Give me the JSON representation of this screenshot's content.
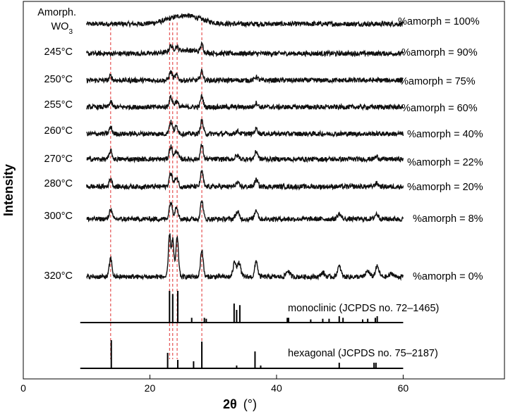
{
  "chart_data": {
    "type": "line",
    "xlabel_main": "2θ",
    "xlabel_unit": "(°)",
    "ylabel": "Intensity",
    "xlim": [
      0,
      76
    ],
    "xticks": [
      0,
      20,
      40,
      60
    ],
    "data_xrange": [
      10,
      60
    ],
    "series": [
      {
        "name": "Amorph. WO3",
        "label_line1": "Amorph.",
        "label_line2_base": "WO",
        "label_line2_sub": "3",
        "amorph_label": "%amorph = 100%",
        "amorph_percent": 100,
        "peaks": [
          {
            "x": 25.5,
            "h": 0.5,
            "w": 3.5
          }
        ]
      },
      {
        "name": "245°C",
        "label": "245°C",
        "amorph_label": "%amorph = 90%",
        "amorph_percent": 90,
        "peaks": [
          {
            "x": 23.3,
            "h": 0.35,
            "w": 0.35
          },
          {
            "x": 24.2,
            "h": 0.25,
            "w": 0.35
          },
          {
            "x": 28.2,
            "h": 0.45,
            "w": 0.3
          },
          {
            "x": 25.5,
            "h": 0.2,
            "w": 3
          }
        ]
      },
      {
        "name": "250°C",
        "label": "250°C",
        "amorph_label": "%amorph = 75%",
        "amorph_percent": 75,
        "peaks": [
          {
            "x": 13.8,
            "h": 0.25,
            "w": 0.3
          },
          {
            "x": 23.3,
            "h": 0.5,
            "w": 0.35
          },
          {
            "x": 24.2,
            "h": 0.3,
            "w": 0.35
          },
          {
            "x": 28.2,
            "h": 0.55,
            "w": 0.3
          },
          {
            "x": 36.8,
            "h": 0.2,
            "w": 0.35
          }
        ]
      },
      {
        "name": "255°C",
        "label": "255°C",
        "amorph_label": "%amorph = 60%",
        "amorph_percent": 60,
        "peaks": [
          {
            "x": 13.8,
            "h": 0.3,
            "w": 0.3
          },
          {
            "x": 23.3,
            "h": 0.6,
            "w": 0.35
          },
          {
            "x": 24.2,
            "h": 0.35,
            "w": 0.35
          },
          {
            "x": 28.2,
            "h": 0.65,
            "w": 0.3
          },
          {
            "x": 36.8,
            "h": 0.25,
            "w": 0.35
          }
        ]
      },
      {
        "name": "260°C",
        "label": "260°C",
        "amorph_label": "%amorph = 40%",
        "amorph_percent": 40,
        "peaks": [
          {
            "x": 13.8,
            "h": 0.4,
            "w": 0.3
          },
          {
            "x": 23.3,
            "h": 0.7,
            "w": 0.35
          },
          {
            "x": 24.2,
            "h": 0.45,
            "w": 0.35
          },
          {
            "x": 28.2,
            "h": 0.8,
            "w": 0.3
          },
          {
            "x": 33.8,
            "h": 0.15,
            "w": 0.4
          },
          {
            "x": 36.8,
            "h": 0.3,
            "w": 0.35
          }
        ]
      },
      {
        "name": "270°C",
        "label": "270°C",
        "amorph_label": "%amorph = 22%",
        "amorph_percent": 22,
        "peaks": [
          {
            "x": 13.8,
            "h": 0.5,
            "w": 0.3
          },
          {
            "x": 23.3,
            "h": 0.75,
            "w": 0.35
          },
          {
            "x": 24.2,
            "h": 0.5,
            "w": 0.35
          },
          {
            "x": 28.2,
            "h": 0.85,
            "w": 0.3
          },
          {
            "x": 33.8,
            "h": 0.2,
            "w": 0.4
          },
          {
            "x": 36.8,
            "h": 0.45,
            "w": 0.35
          },
          {
            "x": 55.8,
            "h": 0.15,
            "w": 0.4
          }
        ]
      },
      {
        "name": "280°C",
        "label": "280°C",
        "amorph_label": "%amorph = 20%",
        "amorph_percent": 20,
        "peaks": [
          {
            "x": 13.8,
            "h": 0.5,
            "w": 0.3
          },
          {
            "x": 23.3,
            "h": 0.8,
            "w": 0.35
          },
          {
            "x": 24.2,
            "h": 0.55,
            "w": 0.35
          },
          {
            "x": 28.2,
            "h": 0.9,
            "w": 0.3
          },
          {
            "x": 33.8,
            "h": 0.2,
            "w": 0.4
          },
          {
            "x": 36.8,
            "h": 0.4,
            "w": 0.35
          },
          {
            "x": 55.8,
            "h": 0.2,
            "w": 0.4
          }
        ]
      },
      {
        "name": "300°C",
        "label": "300°C",
        "amorph_label": "%amorph = 8%",
        "amorph_percent": 8,
        "peaks": [
          {
            "x": 13.8,
            "h": 0.6,
            "w": 0.3
          },
          {
            "x": 23.3,
            "h": 1.0,
            "w": 0.35
          },
          {
            "x": 24.2,
            "h": 0.75,
            "w": 0.35
          },
          {
            "x": 28.2,
            "h": 1.1,
            "w": 0.3
          },
          {
            "x": 33.8,
            "h": 0.4,
            "w": 0.4
          },
          {
            "x": 36.8,
            "h": 0.55,
            "w": 0.35
          },
          {
            "x": 49.9,
            "h": 0.3,
            "w": 0.4
          },
          {
            "x": 55.8,
            "h": 0.3,
            "w": 0.4
          }
        ]
      },
      {
        "name": "320°C",
        "label": "320°C",
        "amorph_label": "%amorph = 0%",
        "amorph_percent": 0,
        "peaks": [
          {
            "x": 13.8,
            "h": 1.1,
            "w": 0.3
          },
          {
            "x": 23.1,
            "h": 2.5,
            "w": 0.25
          },
          {
            "x": 23.6,
            "h": 2.2,
            "w": 0.25
          },
          {
            "x": 24.3,
            "h": 2.3,
            "w": 0.3
          },
          {
            "x": 28.2,
            "h": 1.6,
            "w": 0.3
          },
          {
            "x": 33.4,
            "h": 0.9,
            "w": 0.35
          },
          {
            "x": 34.1,
            "h": 0.8,
            "w": 0.35
          },
          {
            "x": 36.8,
            "h": 0.95,
            "w": 0.3
          },
          {
            "x": 41.8,
            "h": 0.35,
            "w": 0.4
          },
          {
            "x": 47.3,
            "h": 0.25,
            "w": 0.4
          },
          {
            "x": 49.9,
            "h": 0.6,
            "w": 0.4
          },
          {
            "x": 54.4,
            "h": 0.35,
            "w": 0.4
          },
          {
            "x": 55.9,
            "h": 0.6,
            "w": 0.4
          },
          {
            "x": 58.2,
            "h": 0.2,
            "w": 0.4
          }
        ]
      }
    ],
    "references": [
      {
        "name": "monoclinic",
        "label": "monoclinic (JCPDS no. 72–1465)",
        "lines": [
          [
            23.1,
            1.0
          ],
          [
            23.6,
            0.9
          ],
          [
            24.4,
            1.0
          ],
          [
            26.6,
            0.15
          ],
          [
            28.6,
            0.15
          ],
          [
            28.9,
            0.12
          ],
          [
            33.3,
            0.6
          ],
          [
            33.7,
            0.4
          ],
          [
            34.2,
            0.55
          ],
          [
            41.7,
            0.15
          ],
          [
            41.9,
            0.15
          ],
          [
            45.4,
            0.1
          ],
          [
            47.3,
            0.12
          ],
          [
            48.3,
            0.12
          ],
          [
            49.9,
            0.2
          ],
          [
            50.5,
            0.15
          ],
          [
            53.6,
            0.1
          ],
          [
            54.4,
            0.12
          ],
          [
            55.6,
            0.15
          ],
          [
            55.9,
            0.2
          ]
        ]
      },
      {
        "name": "hexagonal",
        "label": "hexagonal (JCPDS no. 75–2187)",
        "lines": [
          [
            13.9,
            1.0
          ],
          [
            22.8,
            0.55
          ],
          [
            24.4,
            0.3
          ],
          [
            26.9,
            0.25
          ],
          [
            28.2,
            0.95
          ],
          [
            33.7,
            0.1
          ],
          [
            36.6,
            0.6
          ],
          [
            37.5,
            0.1
          ],
          [
            49.9,
            0.2
          ],
          [
            55.4,
            0.2
          ],
          [
            55.7,
            0.2
          ]
        ]
      }
    ],
    "reference_guides_x": [
      13.8,
      23.1,
      23.6,
      24.3,
      28.2
    ],
    "colors": {
      "trace": "#111111",
      "guide": "#e03030",
      "axis": "#000000"
    }
  }
}
